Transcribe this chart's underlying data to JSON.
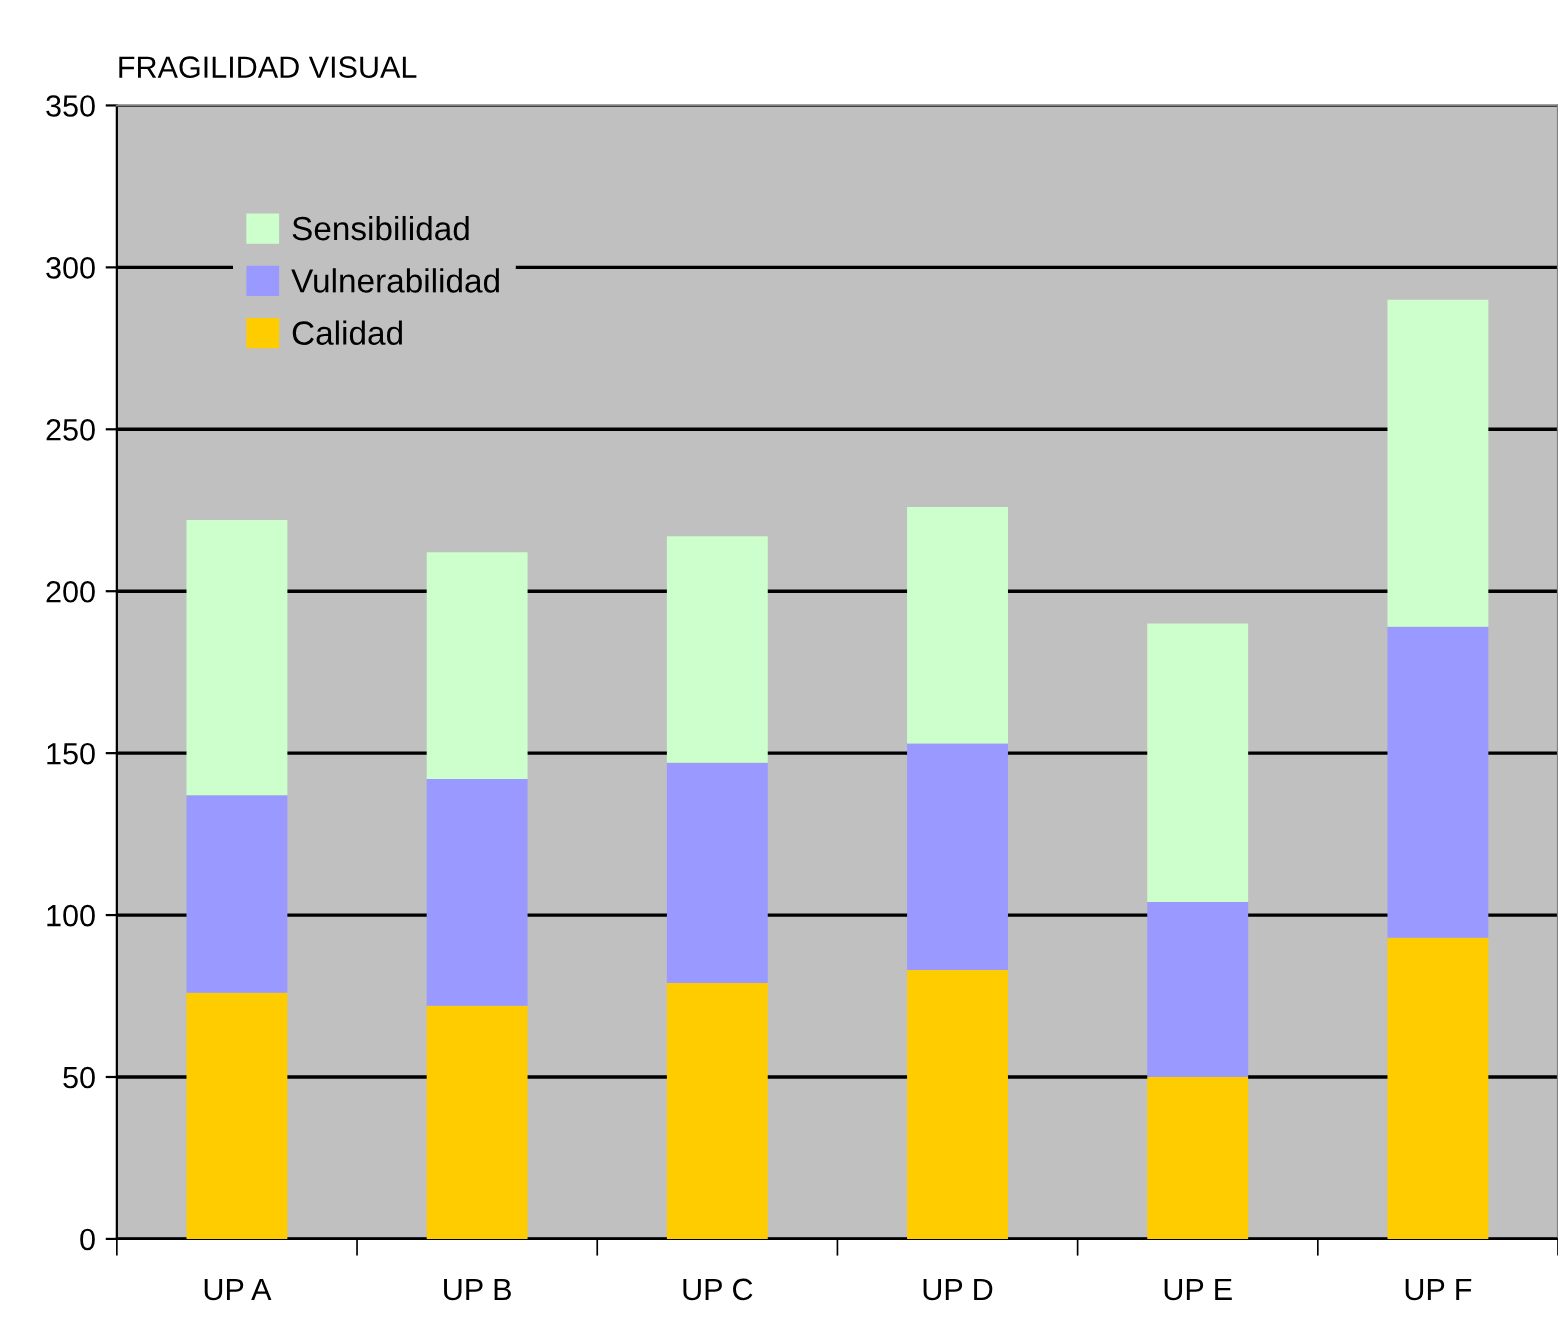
{
  "chart_data": {
    "type": "bar",
    "title": "FRAGILIDAD VISUAL",
    "stacked": true,
    "categories": [
      "UP A",
      "UP B",
      "UP C",
      "UP D",
      "UP E",
      "UP F"
    ],
    "series": [
      {
        "name": "Calidad",
        "color": "#ffcc00",
        "values": [
          76,
          72,
          79,
          83,
          50,
          93
        ]
      },
      {
        "name": "Vulnerabilidad",
        "color": "#9999ff",
        "values": [
          61,
          70,
          68,
          70,
          54,
          96
        ]
      },
      {
        "name": "Sensibilidad",
        "color": "#ccffcc",
        "values": [
          85,
          70,
          70,
          73,
          86,
          101
        ]
      }
    ],
    "ylim": [
      0,
      350
    ],
    "yticks": [
      0,
      50,
      100,
      150,
      200,
      250,
      300,
      350
    ],
    "grid": "y",
    "legend": "top left"
  }
}
